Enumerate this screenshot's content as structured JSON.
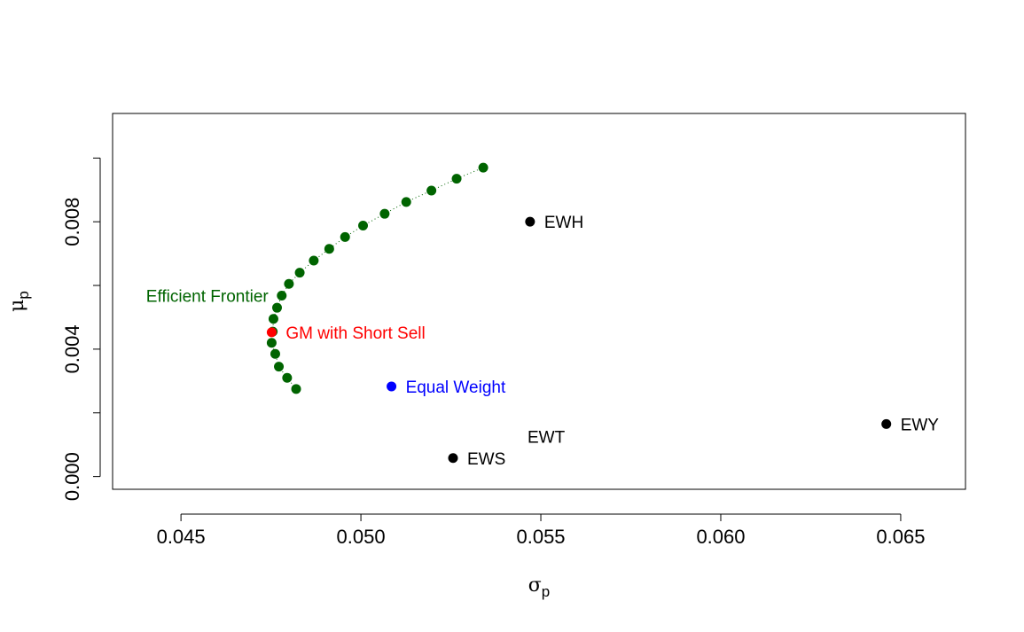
{
  "chart_data": {
    "type": "scatter",
    "xlabel": "σ",
    "xlabel_sub": "p",
    "ylabel": "μ",
    "ylabel_sub": "p",
    "xlim": [
      0.0431,
      0.0668
    ],
    "ylim": [
      -0.0004,
      0.0114
    ],
    "x_ticks": [
      {
        "value": 0.045,
        "label": "0.045"
      },
      {
        "value": 0.05,
        "label": "0.050"
      },
      {
        "value": 0.055,
        "label": "0.055"
      },
      {
        "value": 0.06,
        "label": "0.060"
      },
      {
        "value": 0.065,
        "label": "0.065"
      }
    ],
    "y_ticks": [
      {
        "value": 0.0,
        "label": "0.000"
      },
      {
        "value": 0.002,
        "label": ""
      },
      {
        "value": 0.004,
        "label": "0.004"
      },
      {
        "value": 0.006,
        "label": ""
      },
      {
        "value": 0.008,
        "label": "0.008"
      },
      {
        "value": 0.01,
        "label": ""
      }
    ],
    "grid": false,
    "colors": {
      "frontier": "#006400",
      "gm": "#ff0000",
      "equal_weight": "#0000ff",
      "asset": "#000000",
      "frame": "#000000"
    },
    "frontier": {
      "label": "Efficient Frontier",
      "x": [
        0.0482,
        0.04795,
        0.04772,
        0.04762,
        0.04752,
        0.04755,
        0.04757,
        0.04767,
        0.0478,
        0.048,
        0.0483,
        0.04869,
        0.04912,
        0.04956,
        0.05006,
        0.05066,
        0.05126,
        0.05196,
        0.05266,
        0.0534
      ],
      "y": [
        0.00275,
        0.0031,
        0.00345,
        0.00385,
        0.0042,
        0.00455,
        0.00495,
        0.0053,
        0.00568,
        0.00605,
        0.0064,
        0.00678,
        0.00715,
        0.00752,
        0.00788,
        0.00825,
        0.00862,
        0.00898,
        0.00935,
        0.0097
      ]
    },
    "gm": {
      "label": "GM with Short Sell",
      "x": 0.04752,
      "y": 0.00453
    },
    "equal_weight": {
      "label": "Equal Weight",
      "x": 0.05085,
      "y": 0.00283
    },
    "assets": [
      {
        "label": "EWH",
        "x": 0.0547,
        "y": 0.008,
        "marker": true
      },
      {
        "label": "EWY",
        "x": 0.0646,
        "y": 0.00165,
        "marker": true
      },
      {
        "label": "EWS",
        "x": 0.05256,
        "y": 0.00058,
        "marker": true
      },
      {
        "label": "EWT",
        "x": 0.05515,
        "y": 0.00125,
        "marker": false
      }
    ]
  }
}
